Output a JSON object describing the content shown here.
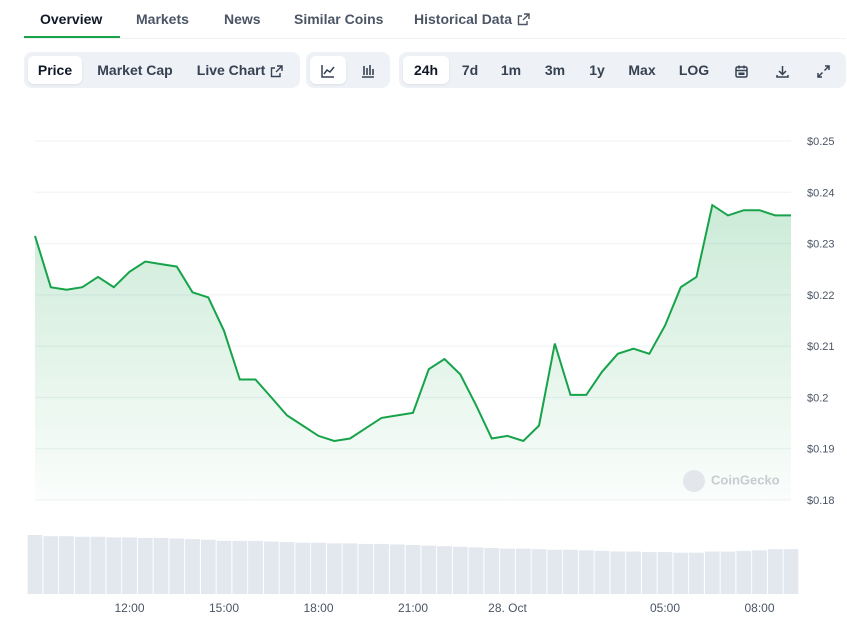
{
  "tabs": [
    "Overview",
    "Markets",
    "News",
    "Similar Coins",
    "Historical Data"
  ],
  "metric_buttons": [
    "Price",
    "Market Cap",
    "Live Chart"
  ],
  "chart_style_buttons": [
    "line-chart-icon",
    "candlestick-icon"
  ],
  "range_buttons": [
    "24h",
    "7d",
    "1m",
    "3m",
    "1y",
    "Max",
    "LOG"
  ],
  "tool_icons": [
    "calendar-icon",
    "download-icon",
    "fullscreen-icon"
  ],
  "selected": {
    "tab": "Overview",
    "metric": "Price",
    "chart_style": "line",
    "range": "24h"
  },
  "watermark": "CoinGecko",
  "colors": {
    "line": "#16a34a",
    "accent": "#16a34a",
    "grid": "#eef2f6"
  },
  "chart_data": {
    "type": "area",
    "ylim": [
      0.18,
      0.25
    ],
    "yticks": [
      "$0.25",
      "$0.24",
      "$0.23",
      "$0.22",
      "$0.21",
      "$0.2",
      "$0.19",
      "$0.18"
    ],
    "ytick_values": [
      0.25,
      0.24,
      0.23,
      0.22,
      0.21,
      0.2,
      0.19,
      0.18
    ],
    "xticks": [
      "12:00",
      "15:00",
      "18:00",
      "21:00",
      "28. Oct",
      "05:00",
      "08:00"
    ],
    "xtick_hours": [
      3,
      6,
      9,
      12,
      15,
      20,
      23
    ],
    "x_hours": [
      0,
      0.5,
      1,
      1.5,
      2,
      2.5,
      3,
      3.5,
      4,
      4.5,
      5,
      5.5,
      6,
      6.5,
      7,
      7.5,
      8,
      8.5,
      9,
      9.5,
      10,
      10.5,
      11,
      11.5,
      12,
      12.5,
      13,
      13.5,
      14,
      14.5,
      15,
      15.5,
      16,
      16.5,
      17,
      17.5,
      18,
      18.5,
      19,
      19.5,
      20,
      20.5,
      21,
      21.5,
      22,
      22.5,
      23,
      23.5,
      24
    ],
    "series": [
      {
        "values": [
          0.2315,
          0.2215,
          0.221,
          0.2215,
          0.2235,
          0.2215,
          0.2245,
          0.2265,
          0.226,
          0.2255,
          0.2205,
          0.2195,
          0.213,
          0.2035,
          0.2035,
          0.2,
          0.1965,
          0.1945,
          0.1925,
          0.1915,
          0.192,
          0.194,
          0.196,
          0.1965,
          0.197,
          0.2055,
          0.2075,
          0.2045,
          0.1985,
          0.192,
          0.1925,
          0.1915,
          0.1945,
          0.2105,
          0.2005,
          0.2005,
          0.205,
          0.2085,
          0.2095,
          0.2085,
          0.214,
          0.2215,
          0.2235,
          0.2375,
          0.2355,
          0.2365,
          0.2365,
          0.2355,
          0.2355
        ]
      }
    ],
    "volume": [
      1,
      0.98,
      0.98,
      0.97,
      0.97,
      0.96,
      0.96,
      0.95,
      0.95,
      0.94,
      0.93,
      0.92,
      0.9,
      0.9,
      0.9,
      0.89,
      0.88,
      0.87,
      0.87,
      0.86,
      0.86,
      0.85,
      0.85,
      0.84,
      0.83,
      0.82,
      0.81,
      0.8,
      0.79,
      0.78,
      0.77,
      0.77,
      0.76,
      0.75,
      0.75,
      0.74,
      0.73,
      0.72,
      0.72,
      0.71,
      0.71,
      0.7,
      0.7,
      0.72,
      0.72,
      0.73,
      0.74,
      0.76,
      0.76
    ]
  }
}
